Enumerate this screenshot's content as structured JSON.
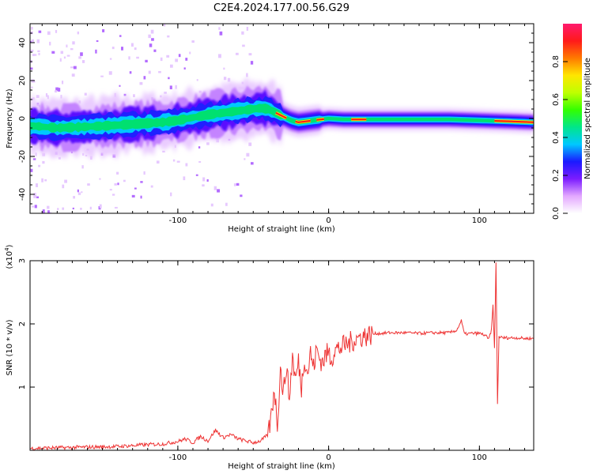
{
  "figure": {
    "title": "C2E4.2024.177.00.56.G29"
  },
  "chart_data": [
    {
      "type": "heatmap",
      "xlabel": "Height of straight line (km)",
      "ylabel": "Frequency (Hz)",
      "xlim": [
        -198,
        136
      ],
      "ylim": [
        -50,
        50
      ],
      "xticks": [
        -100,
        0,
        100
      ],
      "yticks": [
        -40,
        -20,
        0,
        20,
        40
      ],
      "ridge": {
        "x": [
          -195,
          -180,
          -165,
          -150,
          -140,
          -130,
          -120,
          -110,
          -100,
          -90,
          -80,
          -70,
          -60,
          -50,
          -45,
          -40,
          -35,
          -30,
          -25,
          -20,
          -15,
          -10,
          -5,
          0,
          10,
          20,
          40,
          60,
          80,
          100,
          120,
          136
        ],
        "y": [
          -4,
          -5,
          -4.5,
          -4,
          -3.5,
          -3,
          -2.5,
          -2,
          -1,
          0.5,
          2,
          3,
          4,
          5,
          5.5,
          5,
          3,
          1,
          -1,
          -2,
          -1.5,
          -1,
          -0.5,
          0,
          -0.5,
          -0.5,
          -0.5,
          -0.5,
          -0.5,
          -1,
          -1.5,
          -2
        ]
      },
      "colorbar": {
        "label": "Normalized spectral amplitude",
        "range": [
          0,
          1
        ],
        "ticks": [
          "0.0",
          "0.2",
          "0.4",
          "0.6",
          "0.8"
        ],
        "colors": [
          "#ffffff",
          "#e3a8ff",
          "#7b1cff",
          "#1a1aff",
          "#00c8ff",
          "#00e68a",
          "#33ff00",
          "#bfff00",
          "#ffe600",
          "#ff7a00",
          "#ff1a1a",
          "#ff1a6e"
        ]
      }
    },
    {
      "type": "line",
      "xlabel": "Height of straight line (km)",
      "ylabel": "SNR (10 * v/v)",
      "y_multiplier": "(x10",
      "y_multiplier_exp": "4",
      "y_multiplier_close": ")",
      "xlim": [
        -198,
        136
      ],
      "ylim": [
        0,
        3
      ],
      "xticks": [
        -100,
        0,
        100
      ],
      "yticks": [
        1,
        2,
        3
      ],
      "series": [
        {
          "color": "#ee3333",
          "x": [
            -198,
            -180,
            -160,
            -140,
            -120,
            -110,
            -100,
            -95,
            -90,
            -85,
            -80,
            -75,
            -70,
            -65,
            -60,
            -55,
            -50,
            -45,
            -40,
            -38,
            -36,
            -34,
            -32,
            -30,
            -28,
            -26,
            -24,
            -22,
            -20,
            -18,
            -16,
            -14,
            -12,
            -10,
            -8,
            -6,
            -4,
            -2,
            0,
            2,
            4,
            6,
            8,
            10,
            12,
            14,
            16,
            18,
            20,
            22,
            24,
            26,
            28,
            30,
            32,
            35,
            40,
            50,
            60,
            70,
            80,
            85,
            88,
            90,
            95,
            100,
            104,
            106,
            108,
            109,
            110,
            111,
            112,
            113,
            115,
            120,
            125,
            130,
            136
          ],
          "y": [
            0.03,
            0.04,
            0.05,
            0.06,
            0.09,
            0.1,
            0.14,
            0.18,
            0.12,
            0.22,
            0.15,
            0.32,
            0.2,
            0.25,
            0.18,
            0.15,
            0.12,
            0.15,
            0.25,
            0.55,
            1.0,
            0.4,
            1.3,
            0.9,
            1.35,
            0.8,
            1.5,
            1.1,
            1.4,
            1.0,
            1.5,
            1.2,
            1.55,
            1.3,
            1.6,
            1.45,
            1.4,
            1.5,
            1.55,
            1.45,
            1.6,
            1.6,
            1.62,
            1.65,
            1.68,
            1.7,
            1.74,
            1.76,
            1.78,
            1.8,
            1.81,
            1.82,
            1.83,
            1.84,
            1.85,
            1.85,
            1.86,
            1.86,
            1.85,
            1.86,
            1.86,
            1.9,
            2.05,
            1.84,
            1.85,
            1.85,
            1.82,
            1.75,
            1.9,
            2.3,
            1.6,
            2.98,
            0.75,
            1.8,
            1.78,
            1.78,
            1.78,
            1.77,
            1.77
          ]
        }
      ]
    }
  ]
}
